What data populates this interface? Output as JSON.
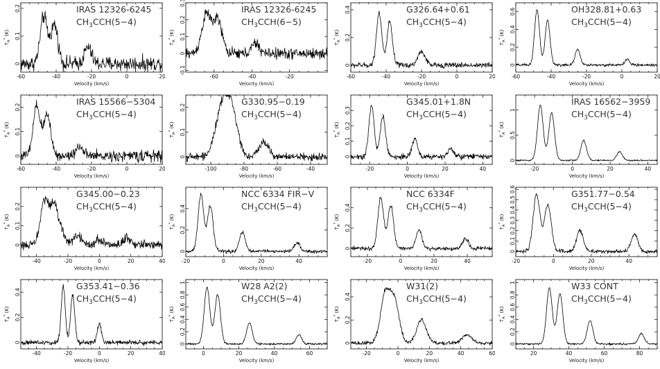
{
  "figure": {
    "xlabel": "Velocity (km/s)",
    "ylabel_main": "T",
    "ylabel_sub": "A",
    "ylabel_sup": "*",
    "ylabel_unit": "(K)"
  },
  "chart_data": [
    {
      "type": "line",
      "source": "IRAS 12326-6245",
      "transition": "CH3CCH(5−4)",
      "species": "CH",
      "species_sub": "3",
      "species_rest": "CCH",
      "line": "(5−4)",
      "xlim": [
        -60,
        20
      ],
      "ylim": [
        -0.03,
        0.22
      ],
      "xticks": [
        -60,
        -40,
        -20,
        0,
        20
      ],
      "yticks": [
        0,
        0.1,
        0.2
      ],
      "peaks": [
        [
          -47,
          0.17,
          2.0
        ],
        [
          -41,
          0.14,
          2.0
        ],
        [
          -22,
          0.06,
          2.0
        ]
      ],
      "noise": 0.02
    },
    {
      "type": "line",
      "source": "IRAS 12326-6245",
      "transition": "CH3CCH(6−5)",
      "species": "CH",
      "species_sub": "3",
      "species_rest": "CCH",
      "line": "(6−5)",
      "xlim": [
        -75,
        0
      ],
      "ylim": [
        -0.11,
        0.3
      ],
      "xticks": [
        -60,
        -40,
        -20
      ],
      "yticks": [
        -0.1,
        0,
        0.1,
        0.2,
        0.3
      ],
      "peaks": [
        [
          -64,
          0.23,
          2.5
        ],
        [
          -58,
          0.19,
          2.3
        ],
        [
          -38,
          0.06,
          2.0
        ]
      ],
      "noise": 0.025
    },
    {
      "type": "line",
      "source": "G326.64+0.61",
      "transition": "CH3CCH(5−4)",
      "species": "CH",
      "species_sub": "3",
      "species_rest": "CCH",
      "line": "(5−4)",
      "xlim": [
        -60,
        20
      ],
      "ylim": [
        -0.05,
        0.45
      ],
      "xticks": [
        -60,
        -40,
        -20,
        0,
        20
      ],
      "yticks": [
        0,
        0.2,
        0.4
      ],
      "peaks": [
        [
          -44,
          0.38,
          1.5
        ],
        [
          -38,
          0.31,
          1.5
        ],
        [
          -20,
          0.1,
          2.0
        ]
      ],
      "noise": 0.015
    },
    {
      "type": "line",
      "source": "OH328.81+0.63",
      "transition": "CH3CCH(5−4)",
      "species": "CH",
      "species_sub": "3",
      "species_rest": "CCH",
      "line": "(5−4)",
      "xlim": [
        -60,
        20
      ],
      "ylim": [
        -0.08,
        0.7
      ],
      "xticks": [
        -60,
        -40,
        -20,
        0,
        20
      ],
      "yticks": [
        0,
        0.2,
        0.4,
        0.6
      ],
      "peaks": [
        [
          -48,
          0.62,
          1.4
        ],
        [
          -42,
          0.5,
          1.4
        ],
        [
          -25,
          0.18,
          1.4
        ],
        [
          3,
          0.06,
          1.4
        ]
      ],
      "noise": 0.012
    },
    {
      "type": "line",
      "source": "IRAS 15566−5304",
      "transition": "CH3CCH(5−4)",
      "species": "CH",
      "species_sub": "3",
      "species_rest": "CCH",
      "line": "(5−4)",
      "xlim": [
        -60,
        20
      ],
      "ylim": [
        -0.035,
        0.25
      ],
      "xticks": [
        -60,
        -40,
        -20,
        0,
        20
      ],
      "yticks": [
        0,
        0.1,
        0.2
      ],
      "peaks": [
        [
          -51,
          0.2,
          2.0
        ],
        [
          -45,
          0.17,
          2.0
        ],
        [
          -27,
          0.04,
          2.0
        ]
      ],
      "noise": 0.017
    },
    {
      "type": "line",
      "source": "G330.95−0.19",
      "transition": "CH3CCH(5−4)",
      "species": "CH",
      "species_sub": "3",
      "species_rest": "CCH",
      "line": "(5−4)",
      "xlim": [
        -115,
        -30
      ],
      "ylim": [
        -0.03,
        0.25
      ],
      "xticks": [
        -100,
        -80,
        -60,
        -40
      ],
      "yticks": [
        0,
        0.1,
        0.2
      ],
      "peaks": [
        [
          -93,
          0.2,
          4.0
        ],
        [
          -87,
          0.15,
          3.5
        ],
        [
          -68,
          0.06,
          3.0
        ]
      ],
      "noise": 0.012
    },
    {
      "type": "line",
      "source": "G345.01+1.8N",
      "transition": "CH3CCH(5−4)",
      "species": "CH",
      "species_sub": "3",
      "species_rest": "CCH",
      "line": "(5−4)",
      "xlim": [
        -30,
        45
      ],
      "ylim": [
        -0.05,
        0.4
      ],
      "xticks": [
        -20,
        0,
        20,
        40
      ],
      "yticks": [
        0,
        0.1,
        0.2,
        0.3
      ],
      "peaks": [
        [
          -19,
          0.33,
          1.4
        ],
        [
          -13,
          0.26,
          1.4
        ],
        [
          4,
          0.12,
          1.4
        ],
        [
          23,
          0.05,
          1.4
        ]
      ],
      "noise": 0.014
    },
    {
      "type": "line",
      "source": "IRAS 16562−3959",
      "transition": "CH3CCH(5−4)",
      "species": "CH",
      "species_sub": "3",
      "species_rest": "CCH",
      "line": "(5−4)",
      "xlim": [
        -30,
        45
      ],
      "ylim": [
        -0.08,
        1.3
      ],
      "xticks": [
        -20,
        0,
        20,
        40
      ],
      "yticks": [
        0,
        0.5,
        1
      ],
      "peaks": [
        [
          -17,
          1.1,
          1.5
        ],
        [
          -11,
          0.95,
          1.5
        ],
        [
          6,
          0.4,
          1.5
        ],
        [
          25,
          0.17,
          1.5
        ]
      ],
      "noise": 0.012
    },
    {
      "type": "line",
      "source": "G345.00−0.23",
      "transition": "CH3CCH(5−4)",
      "species": "CH",
      "species_sub": "3",
      "species_rest": "CCH",
      "line": "(5−4)",
      "xlim": [
        -50,
        40
      ],
      "ylim": [
        -0.06,
        0.3
      ],
      "xticks": [
        -40,
        -20,
        0,
        20,
        40
      ],
      "yticks": [
        0,
        0.1,
        0.2
      ],
      "peaks": [
        [
          -35,
          0.23,
          2.5
        ],
        [
          -29,
          0.2,
          2.5
        ],
        [
          -24,
          0.06,
          2.5
        ],
        [
          -14,
          0.05,
          2.5
        ],
        [
          0,
          0.03,
          2.5
        ],
        [
          18,
          0.04,
          2.5
        ]
      ],
      "noise": 0.018
    },
    {
      "type": "line",
      "source": "NCC 6334 FIR−V",
      "transition": "CH3CCH(5−4)",
      "species": "CH",
      "species_sub": "3",
      "species_rest": "CCH",
      "line": "(5−4)",
      "xlim": [
        -20,
        55
      ],
      "ylim": [
        -0.05,
        0.6
      ],
      "xticks": [
        -20,
        0,
        20,
        40
      ],
      "yticks": [
        0,
        0.2,
        0.4
      ],
      "peaks": [
        [
          -12,
          0.53,
          1.5
        ],
        [
          -7,
          0.42,
          1.5
        ],
        [
          10,
          0.18,
          1.5
        ],
        [
          39,
          0.08,
          1.5
        ]
      ],
      "noise": 0.013
    },
    {
      "type": "line",
      "source": "NCC 6334F",
      "transition": "CH3CCH(5−4)",
      "species": "CH",
      "species_sub": "3",
      "species_rest": "CCH",
      "line": "(5−4)",
      "xlim": [
        -30,
        55
      ],
      "ylim": [
        -0.08,
        0.6
      ],
      "xticks": [
        -20,
        0,
        20,
        40
      ],
      "yticks": [
        0,
        0.2,
        0.4
      ],
      "peaks": [
        [
          -12,
          0.5,
          1.7
        ],
        [
          -6,
          0.42,
          1.7
        ],
        [
          11,
          0.18,
          1.7
        ],
        [
          39,
          0.1,
          1.7
        ]
      ],
      "noise": 0.015
    },
    {
      "type": "line",
      "source": "G351.77−0.54",
      "transition": "CH3CCH(5−4)",
      "species": "CH",
      "species_sub": "3",
      "species_rest": "CCH",
      "line": "(5−4)",
      "xlim": [
        -20,
        55
      ],
      "ylim": [
        -0.05,
        0.62
      ],
      "xticks": [
        -20,
        0,
        20,
        40
      ],
      "yticks": [
        0,
        0.1,
        0.2,
        0.3,
        0.4,
        0.5,
        0.6
      ],
      "peaks": [
        [
          -9,
          0.55,
          1.8
        ],
        [
          -3,
          0.45,
          1.8
        ],
        [
          14,
          0.2,
          1.8
        ],
        [
          43,
          0.16,
          1.8
        ]
      ],
      "noise": 0.015
    },
    {
      "type": "line",
      "source": "G353.41−0.36",
      "transition": "CH3CCH(5−4)",
      "species": "CH",
      "species_sub": "3",
      "species_rest": "CCH",
      "line": "(5−4)",
      "xlim": [
        -50,
        40
      ],
      "ylim": [
        -0.05,
        0.5
      ],
      "xticks": [
        -40,
        -20,
        0,
        20,
        40
      ],
      "yticks": [
        0,
        0.2,
        0.4
      ],
      "peaks": [
        [
          -23,
          0.45,
          1.3
        ],
        [
          -17,
          0.38,
          1.3
        ],
        [
          0,
          0.15,
          1.3
        ]
      ],
      "noise": 0.015
    },
    {
      "type": "line",
      "source": "W28 A2(2)",
      "transition": "CH3CCH(5−4)",
      "species": "CH",
      "species_sub": "3",
      "species_rest": "CCH",
      "line": "(5−4)",
      "xlim": [
        -10,
        70
      ],
      "ylim": [
        -0.08,
        1.05
      ],
      "xticks": [
        0,
        20,
        40,
        60
      ],
      "yticks": [
        0,
        0.2,
        0.4,
        0.6,
        0.8,
        1
      ],
      "peaks": [
        [
          2,
          0.92,
          1.6
        ],
        [
          8,
          0.8,
          1.6
        ],
        [
          26,
          0.34,
          1.6
        ],
        [
          54,
          0.15,
          1.6
        ]
      ],
      "noise": 0.013
    },
    {
      "type": "line",
      "source": "W31(2)",
      "transition": "CH3CCH(5−4)",
      "species": "CH",
      "species_sub": "3",
      "species_rest": "CCH",
      "line": "(5−4)",
      "xlim": [
        -30,
        60
      ],
      "ylim": [
        -0.05,
        0.55
      ],
      "xticks": [
        -20,
        0,
        20,
        40,
        60
      ],
      "yticks": [
        0,
        0.2,
        0.4
      ],
      "peaks": [
        [
          -8,
          0.43,
          3.0
        ],
        [
          -2,
          0.35,
          2.8
        ],
        [
          15,
          0.2,
          3.0
        ],
        [
          44,
          0.07,
          3.0
        ]
      ],
      "noise": 0.013
    },
    {
      "type": "line",
      "source": "W33 CONT",
      "transition": "CH3CCH(5−4)",
      "species": "CH",
      "species_sub": "3",
      "species_rest": "CCH",
      "line": "(5−4)",
      "xlim": [
        10,
        90
      ],
      "ylim": [
        -0.08,
        1.05
      ],
      "xticks": [
        20,
        40,
        60,
        80
      ],
      "yticks": [
        0,
        0.2,
        0.4,
        0.6,
        0.8,
        1
      ],
      "peaks": [
        [
          29,
          0.92,
          1.6
        ],
        [
          35,
          0.82,
          1.6
        ],
        [
          52,
          0.38,
          1.6
        ],
        [
          81,
          0.17,
          1.6
        ]
      ],
      "noise": 0.012
    }
  ]
}
